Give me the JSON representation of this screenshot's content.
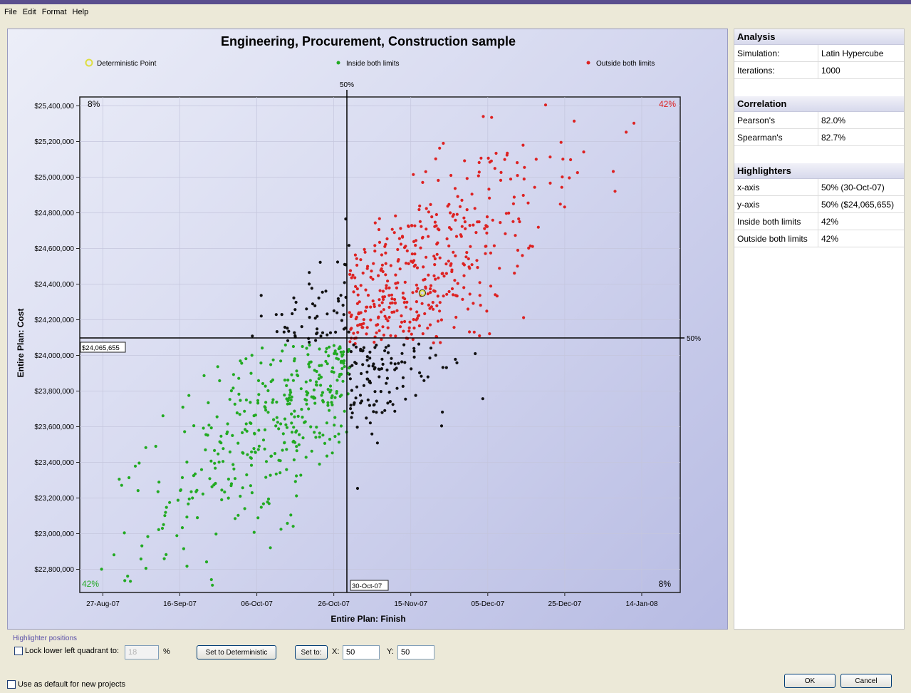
{
  "menu": [
    "File",
    "Edit",
    "Format",
    "Help"
  ],
  "chart_data": {
    "type": "scatter",
    "title": "Engineering, Procurement, Construction sample",
    "xlabel": "Entire Plan: Finish",
    "ylabel": "Entire Plan: Cost",
    "x_ticks": [
      "27-Aug-07",
      "16-Sep-07",
      "06-Oct-07",
      "26-Oct-07",
      "15-Nov-07",
      "05-Dec-07",
      "25-Dec-07",
      "14-Jan-08"
    ],
    "y_ticks": [
      "$25,400,000",
      "$25,200,000",
      "$25,000,000",
      "$24,800,000",
      "$24,600,000",
      "$24,400,000",
      "$24,200,000",
      "$24,000,000",
      "$23,800,000",
      "$23,600,000",
      "$23,400,000",
      "$23,200,000",
      "$23,000,000",
      "$22,800,000"
    ],
    "xlim": [
      "21-Aug-07",
      "24-Jan-08"
    ],
    "ylim": [
      22670000,
      25450000
    ],
    "legend": [
      {
        "label": "Deterministic Point",
        "color": "#dede40",
        "marker": "ring"
      },
      {
        "label": "Inside both limits",
        "color": "#22aa22",
        "marker": "dot"
      },
      {
        "label": "Outside both limits",
        "color": "#dd2222",
        "marker": "dot"
      }
    ],
    "legend_position": "top",
    "grid": true,
    "highlighter_x": {
      "date": "30-Oct-07",
      "label_top": "50%",
      "box_label": "30-Oct-07"
    },
    "highlighter_y": {
      "value": 24065655,
      "label_right": "50%",
      "box_label": "$24,065,655"
    },
    "deterministic_point": {
      "x": "18-Nov-07",
      "y": 24350000
    },
    "quadrant_labels": {
      "top_left": "8%",
      "top_right": "42%",
      "bottom_left": "42%",
      "bottom_right": "8%"
    },
    "colors": {
      "inside": "#22aa22",
      "outside": "#dd2222",
      "other": "#111111"
    },
    "point_count": 1000
  },
  "info": {
    "analysis": {
      "title": "Analysis",
      "rows": [
        [
          "Simulation:",
          "Latin Hypercube"
        ],
        [
          "Iterations:",
          "1000"
        ]
      ]
    },
    "correlation": {
      "title": "Correlation",
      "rows": [
        [
          "Pearson's",
          "82.0%"
        ],
        [
          "Spearman's",
          "82.7%"
        ]
      ]
    },
    "highlighters": {
      "title": "Highlighters",
      "rows": [
        [
          "x-axis",
          "50% (30-Oct-07)"
        ],
        [
          "y-axis",
          "50% ($24,065,655)"
        ],
        [
          "Inside both limits",
          "42%"
        ],
        [
          "Outside both limits",
          "42%"
        ]
      ]
    }
  },
  "bottom": {
    "section_label": "Highlighter positions",
    "lock_label": "Lock lower left quadrant to:",
    "lock_value": "18",
    "percent": "%",
    "set_deterministic": "Set to Deterministic",
    "set_to": "Set to:",
    "x_label": "X:",
    "x_value": "50",
    "y_label": "Y:",
    "y_value": "50",
    "default_label": "Use as default for new projects",
    "ok": "OK",
    "cancel": "Cancel"
  }
}
